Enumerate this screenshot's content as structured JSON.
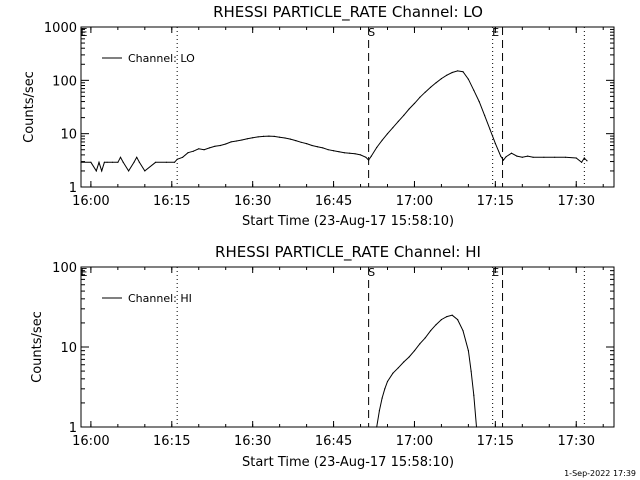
{
  "footer": {
    "date_stamp": "1-Sep-2022 17:39"
  },
  "chart_data": [
    {
      "type": "line",
      "title": "RHESSI PARTICLE_RATE Channel: LO",
      "xlabel": "Start Time (23-Aug-17 15:58:10)",
      "ylabel": "Counts/sec",
      "yscale": "log",
      "ylim": [
        1,
        1000
      ],
      "xlim": [
        "15:58:10",
        "17:37:00"
      ],
      "x_ticks": [
        "16:00",
        "16:15",
        "16:30",
        "16:45",
        "17:00",
        "17:15",
        "17:30"
      ],
      "y_ticks": [
        "1",
        "10",
        "100",
        "1000"
      ],
      "legend": {
        "placement": "top-left",
        "entries": [
          "Channel: LO"
        ]
      },
      "markers": [
        {
          "label": "",
          "time": "16:16:00",
          "style": "dotted"
        },
        {
          "label": "S",
          "time": "16:51:30",
          "style": "dashed"
        },
        {
          "label": "E",
          "time": "17:14:30",
          "style": "dotted"
        },
        {
          "label": "",
          "time": "17:16:20",
          "style": "dashed"
        },
        {
          "label": "",
          "time": "17:31:30",
          "style": "dotted"
        },
        {
          "label": "E",
          "time": "15:58:10",
          "style": "none"
        }
      ],
      "series": [
        {
          "name": "Channel: LO",
          "x": [
            "15:58:10",
            "16:00:00",
            "16:01:00",
            "16:01:30",
            "16:02:00",
            "16:02:30",
            "16:03:00",
            "16:04:00",
            "16:05:00",
            "16:05:30",
            "16:06:00",
            "16:07:00",
            "16:08:00",
            "16:08:30",
            "16:09:00",
            "16:10:00",
            "16:12:00",
            "16:14:00",
            "16:15:30",
            "16:16:00",
            "16:17:00",
            "16:18:00",
            "16:19:00",
            "16:20:00",
            "16:21:00",
            "16:22:00",
            "16:23:00",
            "16:24:00",
            "16:25:00",
            "16:26:00",
            "16:27:00",
            "16:28:00",
            "16:29:00",
            "16:30:00",
            "16:31:00",
            "16:32:00",
            "16:33:00",
            "16:34:00",
            "16:35:00",
            "16:36:00",
            "16:37:00",
            "16:38:00",
            "16:39:00",
            "16:40:00",
            "16:41:00",
            "16:42:00",
            "16:43:00",
            "16:44:00",
            "16:45:00",
            "16:46:00",
            "16:47:00",
            "16:48:00",
            "16:49:00",
            "16:50:00",
            "16:51:00",
            "16:51:30",
            "16:52:00",
            "16:53:00",
            "16:54:00",
            "16:55:00",
            "16:56:00",
            "16:57:00",
            "16:58:00",
            "16:59:00",
            "17:00:00",
            "17:01:00",
            "17:02:00",
            "17:03:00",
            "17:04:00",
            "17:05:00",
            "17:06:00",
            "17:07:00",
            "17:08:00",
            "17:09:00",
            "17:10:00",
            "17:11:00",
            "17:12:00",
            "17:13:00",
            "17:14:00",
            "17:15:00",
            "17:16:00",
            "17:16:30",
            "17:17:00",
            "17:18:00",
            "17:19:00",
            "17:20:00",
            "17:21:00",
            "17:22:00",
            "17:24:00",
            "17:26:00",
            "17:28:00",
            "17:30:00",
            "17:31:00",
            "17:31:30",
            "17:32:00"
          ],
          "values": [
            2.9,
            2.9,
            2.0,
            2.9,
            2.0,
            2.9,
            2.9,
            2.9,
            2.9,
            3.6,
            2.9,
            2.0,
            2.9,
            3.6,
            2.9,
            2.0,
            2.9,
            2.9,
            2.9,
            3.3,
            3.6,
            4.4,
            4.7,
            5.2,
            5.0,
            5.4,
            5.8,
            6.0,
            6.4,
            7.0,
            7.3,
            7.6,
            8.0,
            8.4,
            8.7,
            8.9,
            9.0,
            8.9,
            8.6,
            8.3,
            7.9,
            7.4,
            6.9,
            6.5,
            6.0,
            5.7,
            5.4,
            5.0,
            4.8,
            4.6,
            4.4,
            4.3,
            4.2,
            4.0,
            3.6,
            3.2,
            3.8,
            5.5,
            7.5,
            10.0,
            13.0,
            17.0,
            22.0,
            29.0,
            37.0,
            48.0,
            60.0,
            74.0,
            90.0,
            108.0,
            125.0,
            140.0,
            150.0,
            145.0,
            105.0,
            65.0,
            40.0,
            22.0,
            12.0,
            6.5,
            3.8,
            3.2,
            3.7,
            4.3,
            3.8,
            3.6,
            3.8,
            3.6,
            3.6,
            3.6,
            3.6,
            3.5,
            2.9,
            3.5,
            3.1
          ]
        }
      ]
    },
    {
      "type": "line",
      "title": "RHESSI PARTICLE_RATE Channel: HI",
      "xlabel": "Start Time (23-Aug-17 15:58:10)",
      "ylabel": "Counts/sec",
      "yscale": "log",
      "ylim": [
        1,
        100
      ],
      "xlim": [
        "15:58:10",
        "17:37:00"
      ],
      "x_ticks": [
        "16:00",
        "16:15",
        "16:30",
        "16:45",
        "17:00",
        "17:15",
        "17:30"
      ],
      "y_ticks": [
        "1",
        "10",
        "100"
      ],
      "legend": {
        "placement": "top-left",
        "entries": [
          "Channel: HI"
        ]
      },
      "markers": [
        {
          "label": "",
          "time": "16:16:00",
          "style": "dotted"
        },
        {
          "label": "S",
          "time": "16:51:30",
          "style": "dashed"
        },
        {
          "label": "E",
          "time": "17:14:30",
          "style": "dotted"
        },
        {
          "label": "",
          "time": "17:16:20",
          "style": "dashed"
        },
        {
          "label": "",
          "time": "17:31:30",
          "style": "dotted"
        },
        {
          "label": "E",
          "time": "15:58:10",
          "style": "none"
        }
      ],
      "series": [
        {
          "name": "Channel: HI",
          "x": [
            "16:53:00",
            "16:53:30",
            "16:54:00",
            "16:54:30",
            "16:55:00",
            "16:56:00",
            "16:57:00",
            "16:58:00",
            "16:59:00",
            "17:00:00",
            "17:01:00",
            "17:02:00",
            "17:03:00",
            "17:04:00",
            "17:05:00",
            "17:06:00",
            "17:07:00",
            "17:08:00",
            "17:09:00",
            "17:10:00",
            "17:10:30",
            "17:11:00",
            "17:11:30"
          ],
          "values": [
            1.0,
            1.6,
            2.3,
            3.0,
            3.7,
            4.7,
            5.5,
            6.5,
            7.5,
            9.0,
            11.0,
            13.0,
            16.0,
            19.0,
            22.0,
            24.0,
            25.0,
            22.0,
            16.0,
            9.0,
            5.0,
            2.5,
            1.0
          ]
        }
      ]
    }
  ]
}
